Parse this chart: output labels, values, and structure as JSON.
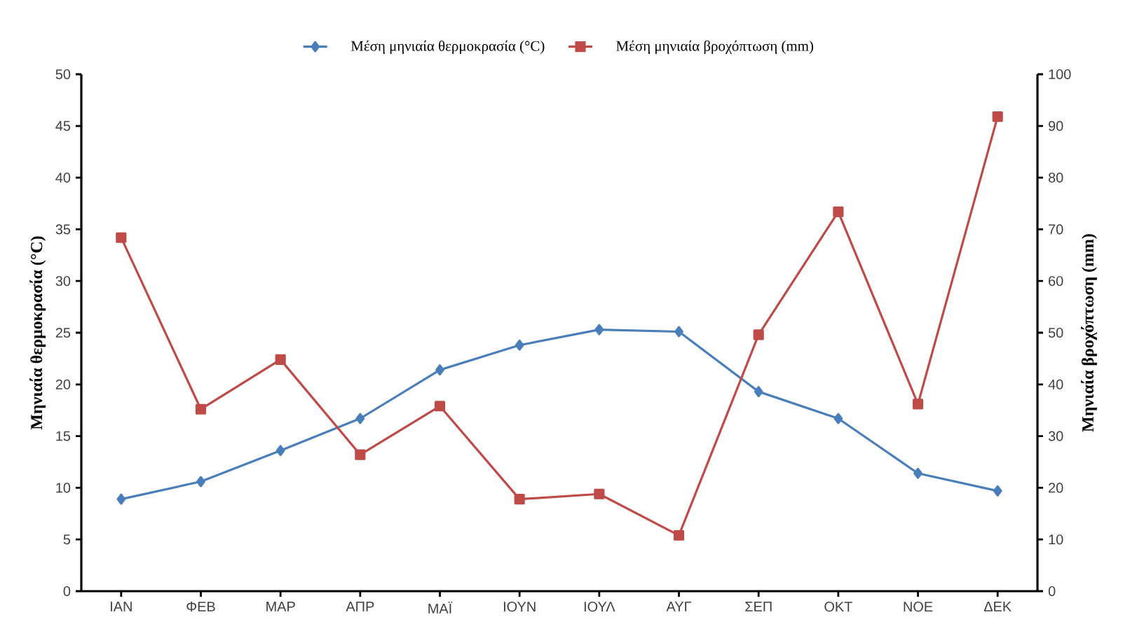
{
  "chart_data": {
    "type": "line",
    "ylabel": "Μηνιαία θερμοκρασία (°C)",
    "y2label": "Μηνιαία βροχόπτωση (mm)",
    "categories": [
      "ΙΑΝ",
      "ΦΕΒ",
      "ΜΑΡ",
      "ΑΠΡ",
      "ΜΑΪ",
      "ΙΟΥΝ",
      "ΙΟΥΛ",
      "ΑΥΓ",
      "ΣΕΠ",
      "ΟΚΤ",
      "ΝΟΕ",
      "ΔΕΚ"
    ],
    "series": [
      {
        "name": "Μέση μηνιαία θερμοκρασία (°C)",
        "color": "#4a7ebb",
        "marker": "diamond",
        "values": [
          8.9,
          10.6,
          13.6,
          16.7,
          21.4,
          23.8,
          25.3,
          25.1,
          19.3,
          16.7,
          11.4,
          9.7
        ]
      },
      {
        "name": "Μέση μηνιαία βροχόπτωση (mm)",
        "color": "#be4b48",
        "marker": "square",
        "axis": "y2",
        "values": [
          68.4,
          35.2,
          44.8,
          26.4,
          35.8,
          17.8,
          18.8,
          10.8,
          49.6,
          73.4,
          36.2,
          91.8
        ]
      }
    ],
    "ylim": [
      0,
      50
    ],
    "yticks": [
      0,
      5,
      10,
      15,
      20,
      25,
      30,
      35,
      40,
      45,
      50
    ],
    "y2lim": [
      0,
      100
    ],
    "y2ticks": [
      0,
      10,
      20,
      30,
      40,
      50,
      60,
      70,
      80,
      90,
      100
    ],
    "grid": false,
    "legend": "top",
    "line_style": "solid"
  }
}
